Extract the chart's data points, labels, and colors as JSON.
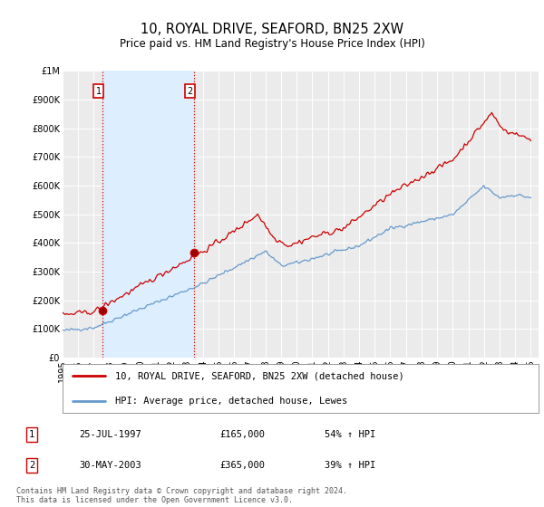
{
  "title": "10, ROYAL DRIVE, SEAFORD, BN25 2XW",
  "subtitle": "Price paid vs. HM Land Registry's House Price Index (HPI)",
  "ylim": [
    0,
    1000000
  ],
  "yticks": [
    0,
    100000,
    200000,
    300000,
    400000,
    500000,
    600000,
    700000,
    800000,
    900000,
    1000000
  ],
  "ytick_labels": [
    "£0",
    "£100K",
    "£200K",
    "£300K",
    "£400K",
    "£500K",
    "£600K",
    "£700K",
    "£800K",
    "£900K",
    "£1M"
  ],
  "xlim_start": 1995.0,
  "xlim_end": 2025.5,
  "xticks": [
    1995,
    1996,
    1997,
    1998,
    1999,
    2000,
    2001,
    2002,
    2003,
    2004,
    2005,
    2006,
    2007,
    2008,
    2009,
    2010,
    2011,
    2012,
    2013,
    2014,
    2015,
    2016,
    2017,
    2018,
    2019,
    2020,
    2021,
    2022,
    2023,
    2024,
    2025
  ],
  "background_color": "#ffffff",
  "plot_bg_color": "#ebebeb",
  "grid_color": "#ffffff",
  "red_line_color": "#cc0000",
  "blue_line_color": "#6699cc",
  "shade_color": "#ddeeff",
  "marker1_x": 1997.57,
  "marker1_y": 165000,
  "marker2_x": 2003.41,
  "marker2_y": 365000,
  "legend_label_red": "10, ROYAL DRIVE, SEAFORD, BN25 2XW (detached house)",
  "legend_label_blue": "HPI: Average price, detached house, Lewes",
  "table_row1": [
    "1",
    "25-JUL-1997",
    "£165,000",
    "54% ↑ HPI"
  ],
  "table_row2": [
    "2",
    "30-MAY-2003",
    "£365,000",
    "39% ↑ HPI"
  ],
  "copyright_text": "Contains HM Land Registry data © Crown copyright and database right 2024.\nThis data is licensed under the Open Government Licence v3.0.",
  "title_fontsize": 10.5,
  "subtitle_fontsize": 8.5,
  "tick_fontsize": 7,
  "legend_fontsize": 7.5,
  "table_fontsize": 7.5,
  "copyright_fontsize": 6.0
}
